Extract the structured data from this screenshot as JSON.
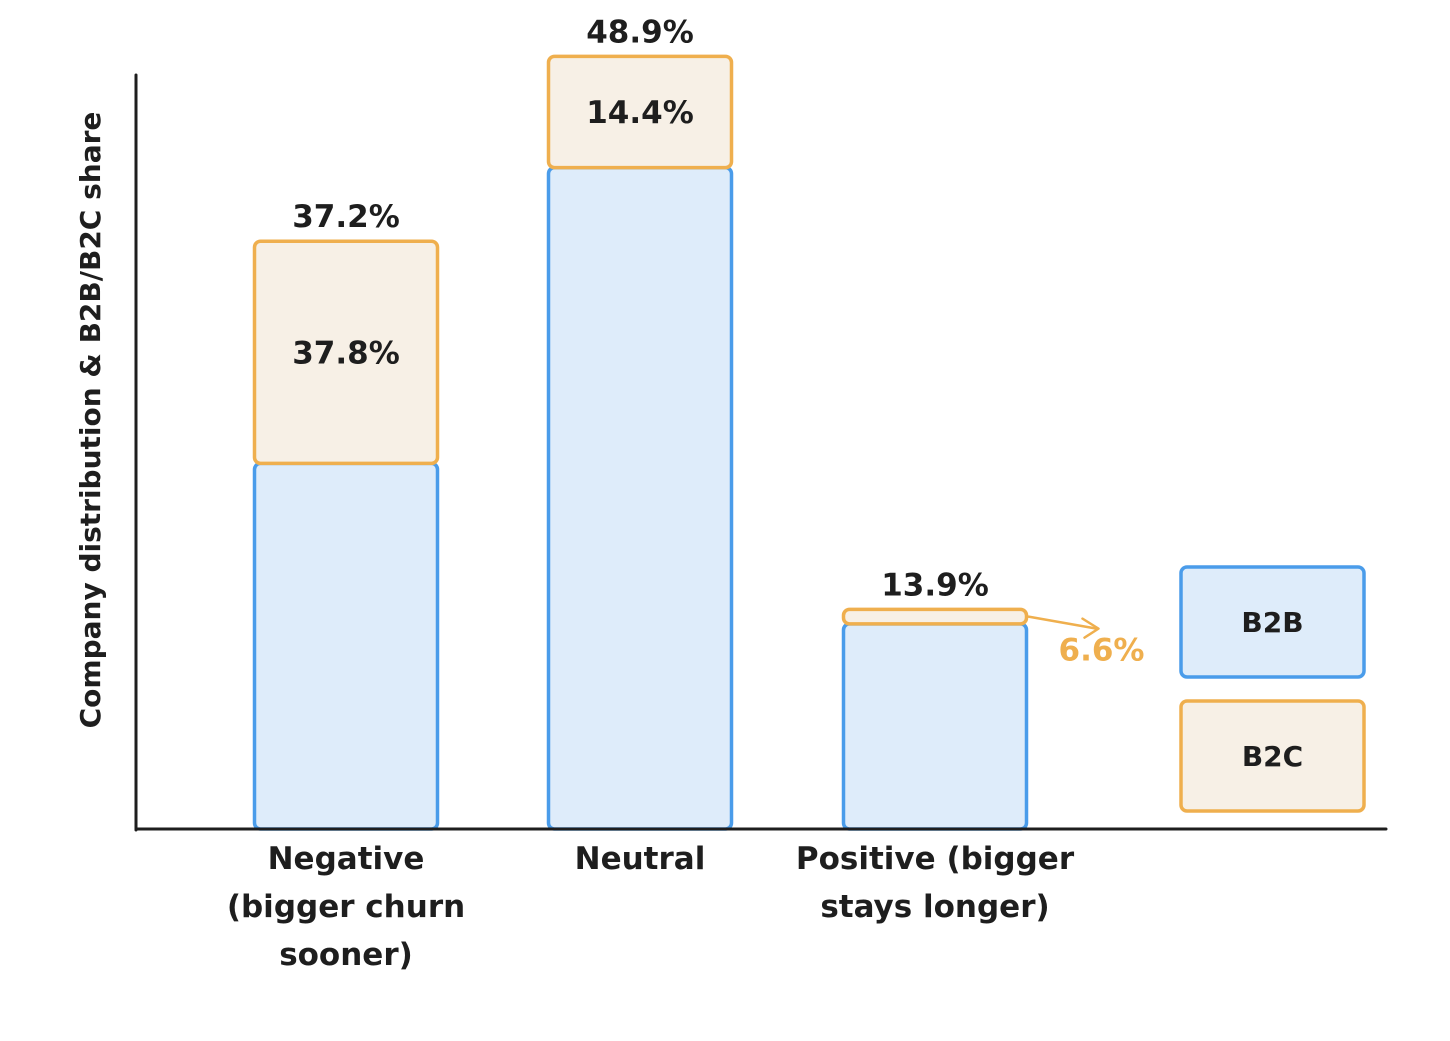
{
  "chart_data": {
    "type": "bar",
    "stacked": true,
    "ylabel": "Company distribution & B2B/B2C share",
    "categories": [
      [
        "Negative",
        "(bigger churn",
        "sooner)"
      ],
      [
        "Neutral"
      ],
      [
        "Positive (bigger",
        "stays longer)"
      ]
    ],
    "totals": [
      37.2,
      48.9,
      13.9
    ],
    "total_labels": [
      "37.2%",
      "48.9%",
      "13.9%"
    ],
    "b2c_share": [
      37.8,
      14.4,
      6.6
    ],
    "b2c_labels": [
      "37.8%",
      "14.4%",
      "6.6%"
    ],
    "series": [
      {
        "name": "B2B",
        "fill": "#deecfa",
        "stroke": "#4a9cea"
      },
      {
        "name": "B2C",
        "fill": "#f7f0e6",
        "stroke": "#efaf4e"
      }
    ],
    "legend": [
      "B2B",
      "B2C"
    ],
    "legend_position": "right",
    "colors": {
      "axis": "#1e1e1e",
      "callout": "#efaf4e"
    }
  }
}
